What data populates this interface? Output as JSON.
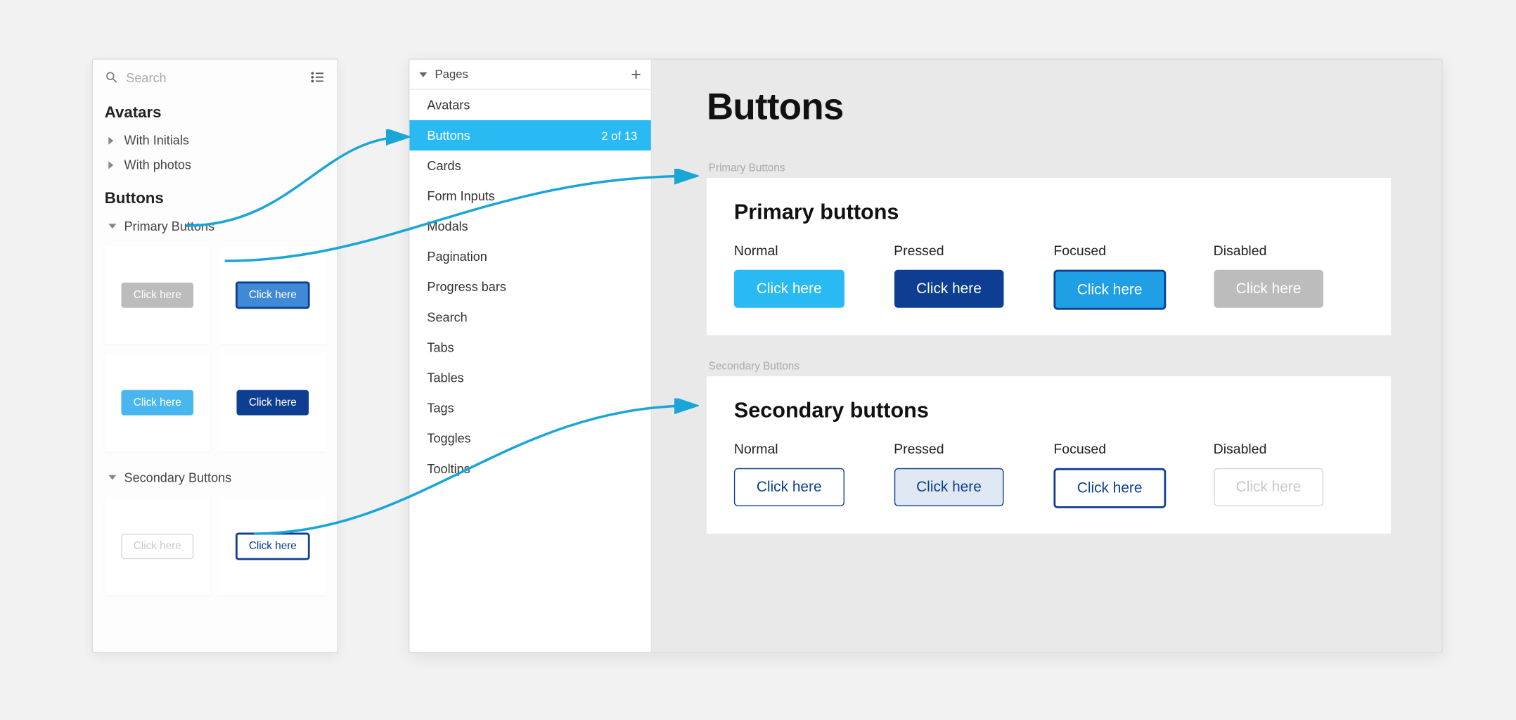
{
  "colors": {
    "page_bg": "#f2f2f2",
    "panel_bg": "#fdfdfd",
    "panel_border": "#dcdcdc",
    "canvas_bg": "#e9e9e9",
    "accent": "#29baf3",
    "arrow": "#1aa5d8",
    "primary_normal_bg": "#29baf3",
    "primary_normal_fg": "#ffffff",
    "primary_pressed_bg": "#0d3e91",
    "primary_pressed_fg": "#ffffff",
    "primary_focused_bg": "#1f9fe6",
    "primary_focused_fg": "#ffffff",
    "primary_focused_border": "#0d3e91",
    "primary_disabled_bg": "#bcbcbc",
    "primary_disabled_fg": "#ffffff",
    "secondary_normal_border": "#0d3e91",
    "secondary_normal_fg": "#0d3e91",
    "secondary_pressed_bg": "#dfe8f2",
    "secondary_pressed_fg": "#0d3e91",
    "secondary_focused_border": "#0d3e91",
    "secondary_focused_fg": "#0d3e91",
    "secondary_disabled_border": "#d6d6d6",
    "secondary_disabled_fg": "#c8c8c8",
    "thumb_disabled_bg": "#bcbcbc",
    "thumb_focused_bg": "#3f89d6",
    "thumb_normal_bg": "#49b6ef",
    "thumb_pressed_bg": "#0d3e91"
  },
  "left": {
    "search_placeholder": "Search",
    "sections": {
      "avatars": {
        "title": "Avatars",
        "children": [
          "With Initials",
          "With photos"
        ]
      },
      "buttons": {
        "title": "Buttons",
        "primary_label": "Primary Buttons",
        "secondary_label": "Secondary Buttons"
      }
    },
    "thumb_label": "Click here"
  },
  "pages": {
    "header": "Pages",
    "items": [
      {
        "label": "Avatars"
      },
      {
        "label": "Buttons",
        "selected": true,
        "count": "2 of 13"
      },
      {
        "label": "Cards"
      },
      {
        "label": "Form Inputs"
      },
      {
        "label": "Modals"
      },
      {
        "label": "Pagination"
      },
      {
        "label": "Progress bars"
      },
      {
        "label": "Search"
      },
      {
        "label": "Tabs"
      },
      {
        "label": "Tables"
      },
      {
        "label": "Tags"
      },
      {
        "label": "Toggles"
      },
      {
        "label": "Tooltips"
      }
    ]
  },
  "canvas": {
    "title": "Buttons",
    "frames": {
      "primary": {
        "layer_label": "Primary Buttons",
        "heading": "Primary buttons",
        "states": [
          "Normal",
          "Pressed",
          "Focused",
          "Disabled"
        ],
        "button_text": "Click here"
      },
      "secondary": {
        "layer_label": "Secondary Buttons",
        "heading": "Secondary buttons",
        "states": [
          "Normal",
          "Pressed",
          "Focused",
          "Disabled"
        ],
        "button_text": "Click here"
      }
    }
  }
}
